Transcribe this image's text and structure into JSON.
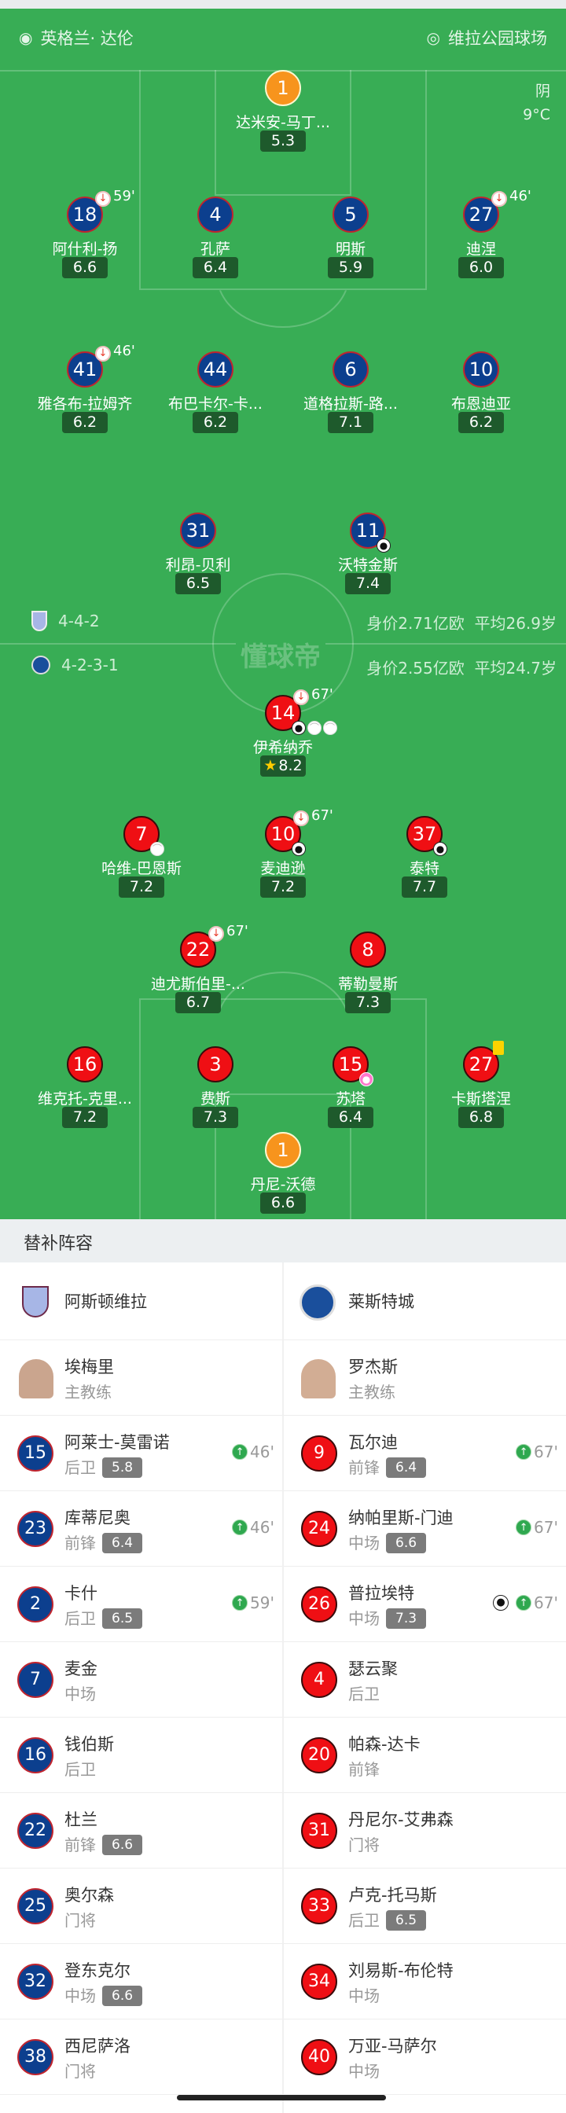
{
  "header": {
    "referee": "英格兰· 达伦",
    "stadium": "维拉公园球场",
    "weather": "阴",
    "temperature": "9°C"
  },
  "watermark": "懂球帝",
  "home": {
    "name": "阿斯顿维拉",
    "formation": "4-4-2",
    "value": "身价2.71亿欧",
    "age": "平均26.9岁",
    "color": "#0c3f8e",
    "coach": {
      "name": "埃梅里",
      "role": "主教练"
    },
    "lineup": [
      {
        "num": "1",
        "name": "达米安-马丁...",
        "rating": "5.3",
        "gk": true
      },
      {
        "num": "18",
        "name": "阿什利-扬",
        "rating": "6.6",
        "off": "59'"
      },
      {
        "num": "4",
        "name": "孔萨",
        "rating": "6.4"
      },
      {
        "num": "5",
        "name": "明斯",
        "rating": "5.9"
      },
      {
        "num": "27",
        "name": "迪涅",
        "rating": "6.0",
        "off": "46'"
      },
      {
        "num": "41",
        "name": "雅各布-拉姆齐",
        "rating": "6.2",
        "off": "46'"
      },
      {
        "num": "44",
        "name": "布巴卡尔-卡...",
        "rating": "6.2"
      },
      {
        "num": "6",
        "name": "道格拉斯-路...",
        "rating": "7.1"
      },
      {
        "num": "10",
        "name": "布恩迪亚",
        "rating": "6.2"
      },
      {
        "num": "31",
        "name": "利昂-贝利",
        "rating": "6.5"
      },
      {
        "num": "11",
        "name": "沃特金斯",
        "rating": "7.4",
        "icons": [
          "goal"
        ]
      }
    ],
    "subs": [
      {
        "num": "15",
        "name": "阿莱士-莫雷诺",
        "pos": "后卫",
        "rating": "5.8",
        "in": "46'"
      },
      {
        "num": "23",
        "name": "库蒂尼奥",
        "pos": "前锋",
        "rating": "6.4",
        "in": "46'"
      },
      {
        "num": "2",
        "name": "卡什",
        "pos": "后卫",
        "rating": "6.5",
        "in": "59'"
      },
      {
        "num": "7",
        "name": "麦金",
        "pos": "中场"
      },
      {
        "num": "16",
        "name": "钱伯斯",
        "pos": "后卫"
      },
      {
        "num": "22",
        "name": "杜兰",
        "pos": "前锋",
        "rating": "6.6"
      },
      {
        "num": "25",
        "name": "奥尔森",
        "pos": "门将"
      },
      {
        "num": "32",
        "name": "登东克尔",
        "pos": "中场",
        "rating": "6.6"
      },
      {
        "num": "38",
        "name": "西尼萨洛",
        "pos": "门将"
      }
    ]
  },
  "away": {
    "name": "莱斯特城",
    "formation": "4-2-3-1",
    "value": "身价2.55亿欧",
    "age": "平均24.7岁",
    "color": "#ef0f14",
    "coach": {
      "name": "罗杰斯",
      "role": "主教练"
    },
    "lineup": [
      {
        "num": "14",
        "name": "伊希纳乔",
        "rating": "8.2",
        "off": "67'",
        "icons": [
          "goal",
          "assist",
          "assist"
        ],
        "mvp": true
      },
      {
        "num": "7",
        "name": "哈维-巴恩斯",
        "rating": "7.2",
        "icons": [
          "assist"
        ]
      },
      {
        "num": "10",
        "name": "麦迪逊",
        "rating": "7.2",
        "off": "67'",
        "icons": [
          "goal"
        ]
      },
      {
        "num": "37",
        "name": "泰特",
        "rating": "7.7",
        "icons": [
          "goal"
        ]
      },
      {
        "num": "22",
        "name": "迪尤斯伯里-...",
        "rating": "6.7",
        "off": "67'"
      },
      {
        "num": "8",
        "name": "蒂勒曼斯",
        "rating": "7.3"
      },
      {
        "num": "16",
        "name": "维克托-克里...",
        "rating": "7.2"
      },
      {
        "num": "3",
        "name": "费斯",
        "rating": "7.3"
      },
      {
        "num": "15",
        "name": "苏塔",
        "rating": "6.4",
        "icons": [
          "owngoal"
        ]
      },
      {
        "num": "27",
        "name": "卡斯塔涅",
        "rating": "6.8",
        "yellow": true
      },
      {
        "num": "1",
        "name": "丹尼-沃德",
        "rating": "6.6",
        "gk": true
      }
    ],
    "subs": [
      {
        "num": "9",
        "name": "瓦尔迪",
        "pos": "前锋",
        "rating": "6.4",
        "in": "67'"
      },
      {
        "num": "24",
        "name": "纳帕里斯-门迪",
        "pos": "中场",
        "rating": "6.6",
        "in": "67'"
      },
      {
        "num": "26",
        "name": "普拉埃特",
        "pos": "中场",
        "rating": "7.3",
        "in": "67'",
        "goal": true
      },
      {
        "num": "4",
        "name": "瑟云聚",
        "pos": "后卫"
      },
      {
        "num": "20",
        "name": "帕森-达卡",
        "pos": "前锋"
      },
      {
        "num": "31",
        "name": "丹尼尔-艾弗森",
        "pos": "门将"
      },
      {
        "num": "33",
        "name": "卢克-托马斯",
        "pos": "后卫",
        "rating": "6.5"
      },
      {
        "num": "34",
        "name": "刘易斯-布伦特",
        "pos": "中场"
      },
      {
        "num": "40",
        "name": "万亚-马萨尔",
        "pos": "中场"
      }
    ]
  },
  "subs_title": "替补阵容"
}
